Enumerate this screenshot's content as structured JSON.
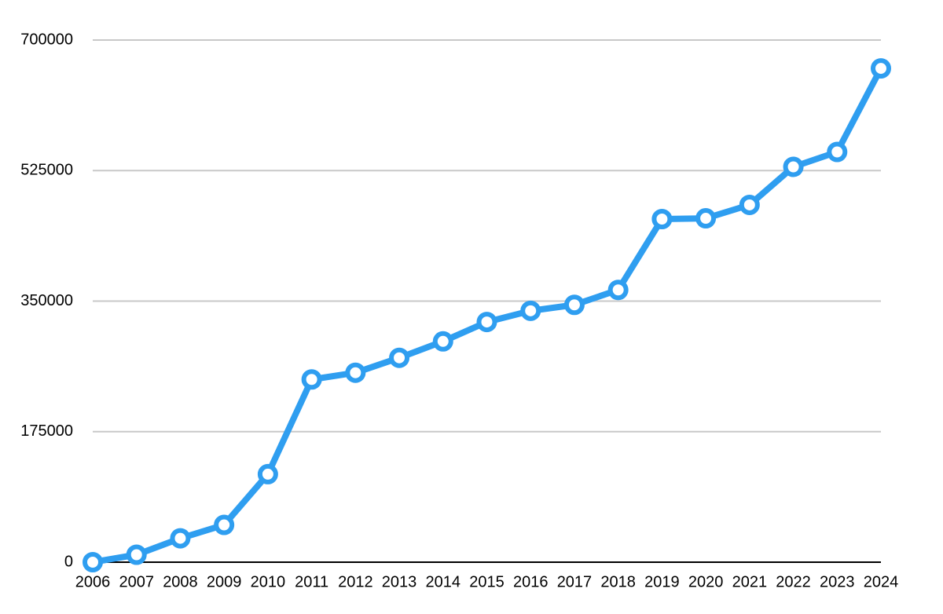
{
  "chart_data": {
    "type": "line",
    "categories": [
      "2006",
      "2007",
      "2008",
      "2009",
      "2010",
      "2011",
      "2012",
      "2013",
      "2014",
      "2015",
      "2016",
      "2017",
      "2018",
      "2019",
      "2020",
      "2021",
      "2022",
      "2023",
      "2024"
    ],
    "values": [
      0,
      10000,
      32000,
      50000,
      118000,
      245000,
      254000,
      274000,
      296000,
      322000,
      337000,
      345000,
      365000,
      460000,
      461000,
      479000,
      530000,
      550000,
      662000
    ],
    "color": "#2f9ef0",
    "ylim": [
      0,
      700000
    ],
    "yticks": [
      0,
      175000,
      350000,
      525000,
      700000
    ],
    "grid": true
  }
}
